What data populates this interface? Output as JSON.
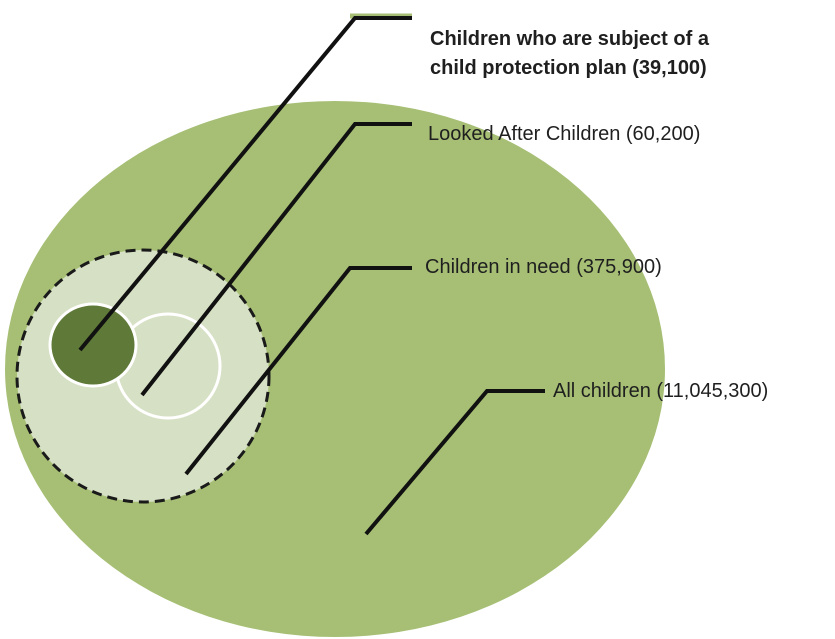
{
  "title": "",
  "colors": {
    "all_children": "#a6bf74",
    "children_in_need": "#d6e0c4",
    "looked_after_children": "#d6e0c4",
    "child_protection_plan": "#5f7a38",
    "callout_line": "#111111",
    "legend_swatch": "#a6bf74"
  },
  "labels": {
    "child_protection_plan": {
      "line1": "Children who are subject of a",
      "line2": "child protection plan (39,100)"
    },
    "looked_after_children": "Looked After Children (60,200)",
    "children_in_need": "Children in need (375,900)",
    "all_children": "All children (11,045,300)"
  }
}
